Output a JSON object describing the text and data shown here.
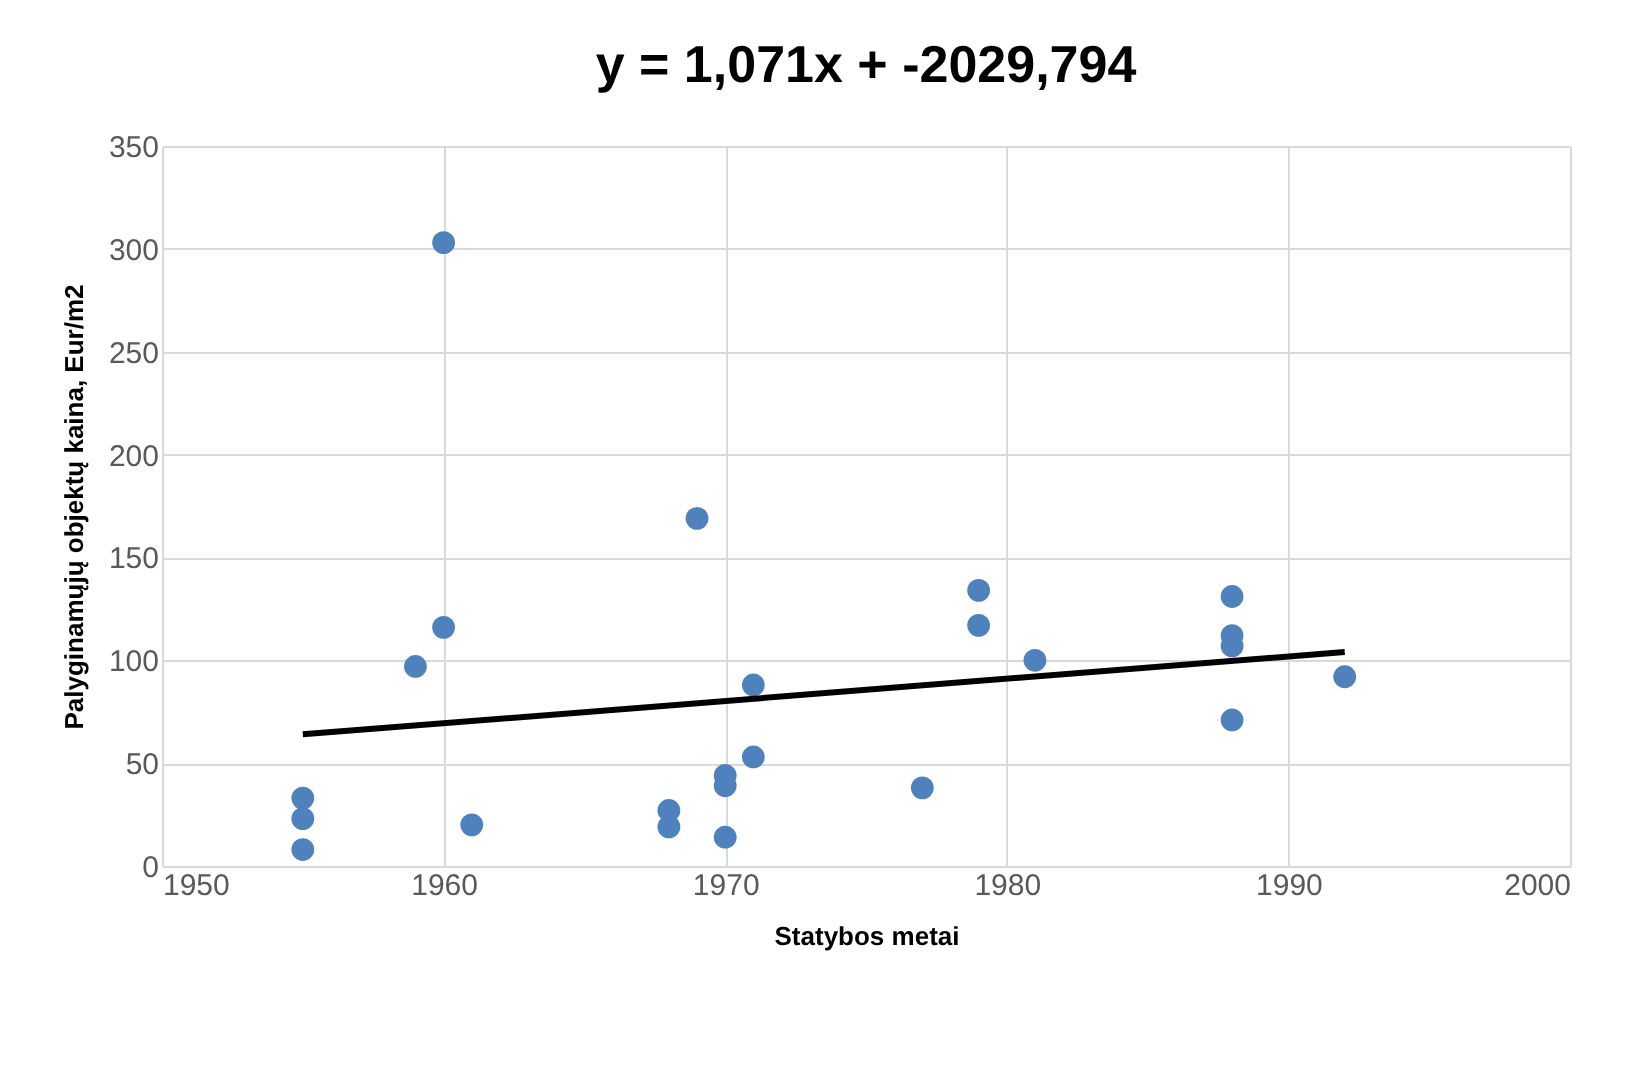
{
  "chart_data": {
    "type": "scatter",
    "title": "y = 1,071x + -2029,794",
    "xlabel": "Statybos metai",
    "ylabel": "Palyginamųjų objektų kaina, Eur/m2",
    "xlim": [
      1950,
      2000
    ],
    "xticks": [
      1950,
      1960,
      1970,
      1980,
      1990,
      2000
    ],
    "ylim": [
      0,
      350
    ],
    "yticks": [
      0,
      50,
      100,
      150,
      200,
      250,
      300,
      350
    ],
    "grid": true,
    "legend": false,
    "series": [
      {
        "color": "#4f81bd",
        "marker": "circle",
        "x": [
          1955,
          1955,
          1955,
          1959,
          1960,
          1960,
          1961,
          1968,
          1968,
          1969,
          1970,
          1970,
          1970,
          1971,
          1971,
          1977,
          1979,
          1979,
          1981,
          1988,
          1988,
          1988,
          1988,
          1992
        ],
        "values": [
          33,
          23,
          8,
          97,
          303,
          116,
          20,
          27,
          19,
          169,
          44,
          39,
          14,
          88,
          53,
          38,
          134,
          117,
          100,
          131,
          112,
          107,
          71,
          92
        ]
      },
      {
        "type": "line",
        "color": "#000000",
        "x": [
          1955,
          1992
        ],
        "values": [
          64,
          104
        ]
      }
    ]
  }
}
